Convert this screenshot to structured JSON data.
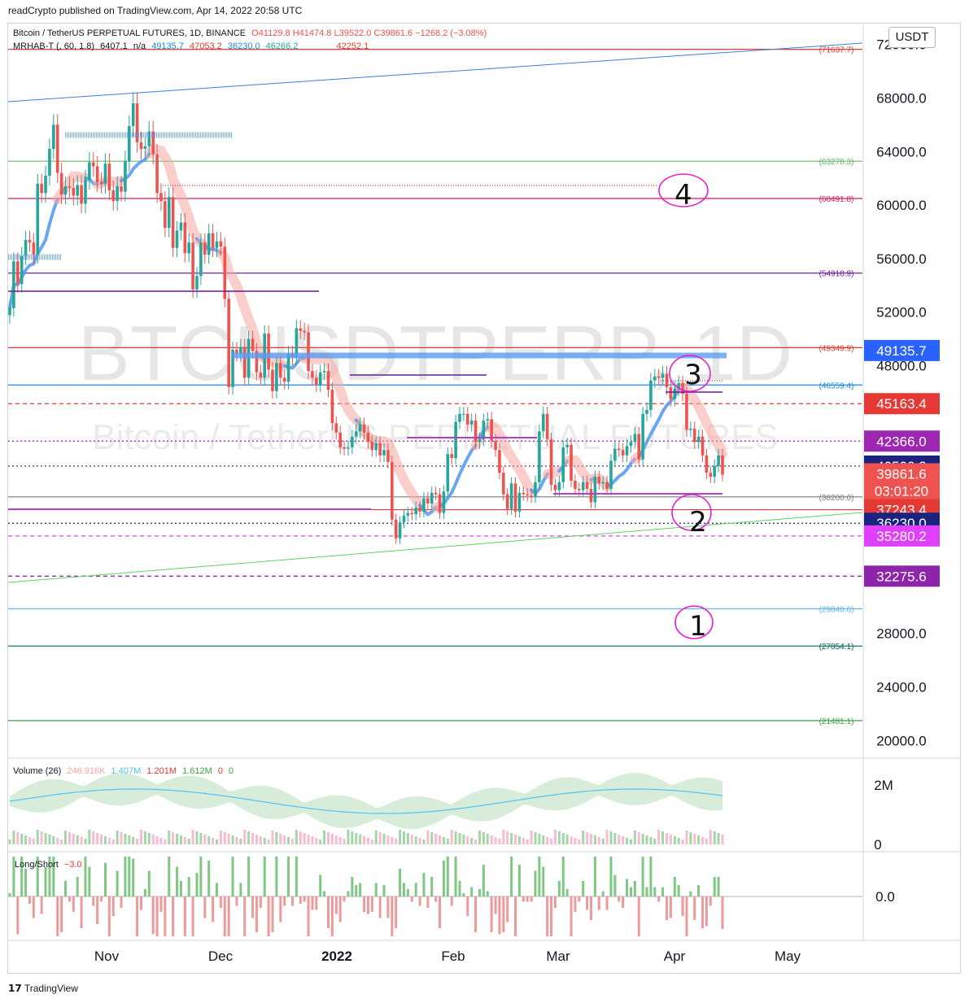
{
  "publisher": "readCrypto published on TradingView.com, Apr 14, 2022 20:58 UTC",
  "footer": "TradingView",
  "currency_button": "USDT",
  "watermark": {
    "line1": "BTCUSDTPERP, 1D",
    "line2": "Bitcoin / TetherUS PERPETUAL FUTURES"
  },
  "legend": {
    "symbol": "Bitcoin / TetherUS PERPETUAL FUTURES, 1D, BINANCE",
    "ohlc": "O41129.8 H41474.8 L39522.0 C39861.6 −1268.2 (−3.08%)",
    "indicator": "MRHAB-T (, 60, 1.8)",
    "ind_vals": [
      "6407.1",
      "n/a",
      "49135.7",
      "47053.2",
      "36230.0",
      "46266.2",
      "42252.1"
    ]
  },
  "volume_legend": {
    "name": "Volume (26)",
    "vals": [
      "246.916K",
      "1.407M",
      "1.201M",
      "1.612M",
      "0",
      "0"
    ]
  },
  "ls_legend": {
    "name": "Long/Short",
    "val": "−3.0"
  },
  "colors": {
    "up": "#26a69a",
    "down": "#ef5350",
    "blue": "#5b9cf0",
    "salmon": "#f4a6a0",
    "green_line": "#4caf50",
    "red_line": "#e53935"
  },
  "chart_data": {
    "type": "candlestick",
    "price_axis": [
      72000,
      68000,
      64000,
      60000,
      56000,
      52000,
      48000,
      28000,
      24000,
      20000
    ],
    "price_axis_labels": [
      "72000.0",
      "68000.0",
      "64000.0",
      "60000.0",
      "56000.0",
      "52000.0",
      "48000.0",
      "28000.0",
      "24000.0",
      "20000.0"
    ],
    "ylim": [
      18800,
      73500
    ],
    "time_axis": [
      "Nov",
      "Dec",
      "2022",
      "Feb",
      "Mar",
      "Apr",
      "May"
    ],
    "h_levels": [
      {
        "value": 71637.7,
        "label": "(71637.7)",
        "color": "#e53935",
        "style": "solid",
        "from": 0.0
      },
      {
        "value": 63278.3,
        "label": "(63278.3)",
        "color": "#66bb6a",
        "style": "solid",
        "from": 0.0
      },
      {
        "value": 60491.8,
        "label": "(60491.8)",
        "color": "#d81b60",
        "style": "solid",
        "from": 0.0
      },
      {
        "value": 54918.9,
        "label": "(54918.9)",
        "color": "#7b1fa2",
        "style": "solid",
        "from": 0.0
      },
      {
        "value": 49349.9,
        "label": "(49349.9)",
        "color": "#e53935",
        "style": "solid",
        "from": 0.0
      },
      {
        "value": 46559.4,
        "label": "(46559.4)",
        "color": "#1e88e5",
        "style": "solid",
        "from": 0.0
      },
      {
        "value": 38200.0,
        "label": "(38200.0)",
        "color": "#787b86",
        "style": "solid",
        "from": 0.0
      },
      {
        "value": 29840.6,
        "label": "(29840.6)",
        "color": "#64b5f6",
        "style": "solid",
        "from": 0.0
      },
      {
        "value": 27054.1,
        "label": "(27054.1)",
        "color": "#00695c",
        "style": "solid",
        "from": 0.0
      },
      {
        "value": 21481.1,
        "label": "(21481.1)",
        "color": "#43a047",
        "style": "solid",
        "from": 0.0
      },
      {
        "value": 45163.4,
        "label": "",
        "color": "#e53935",
        "style": "dashed",
        "from": 0.0
      },
      {
        "value": 42366.0,
        "label": "",
        "color": "#8e24aa",
        "style": "dotted",
        "from": 0.0
      },
      {
        "value": 40500.3,
        "label": "",
        "color": "#1a237e",
        "style": "dotted",
        "from": 0.0
      },
      {
        "value": 37243.4,
        "label": "",
        "color": "#e53935",
        "style": "solid",
        "from": 0.0
      },
      {
        "value": 36230.0,
        "label": "",
        "color": "#1a237e",
        "style": "dotted",
        "from": 0.0
      },
      {
        "value": 35280.2,
        "label": "",
        "color": "#e040fb",
        "style": "dashed",
        "from": 0.0
      },
      {
        "value": 32275.6,
        "label": "",
        "color": "#7b1fa2",
        "style": "dashed",
        "from": 0.0
      }
    ],
    "price_tags": [
      {
        "value": 49135.7,
        "label": "49135.7",
        "bg": "#2962ff"
      },
      {
        "value": 45163.4,
        "label": "45163.4",
        "bg": "#e53935"
      },
      {
        "value": 42366.0,
        "label": "42366.0",
        "bg": "#9c27b0"
      },
      {
        "value": 40500.3,
        "label": "40500.3",
        "bg": "#1a237e"
      },
      {
        "value": 39861.6,
        "label": "39861.6",
        "bg": "#ef5350",
        "sub": "03:01:20"
      },
      {
        "value": 37243.4,
        "label": "37243.4",
        "bg": "#e53935"
      },
      {
        "value": 36230.0,
        "label": "36230.0",
        "bg": "#1a237e"
      },
      {
        "value": 35280.2,
        "label": "35280.2",
        "bg": "#e040fb"
      },
      {
        "value": 32275.6,
        "label": "32275.6",
        "bg": "#8e24aa"
      }
    ],
    "annotations": [
      "1",
      "2",
      "3",
      "4"
    ],
    "volume_axis": [
      "2M",
      "0"
    ],
    "ls_axis": [
      "0.0"
    ],
    "closes": [
      52300,
      55800,
      54100,
      56200,
      57400,
      57200,
      56300,
      61600,
      60900,
      62200,
      64200,
      66000,
      62400,
      60800,
      61400,
      61300,
      60700,
      61500,
      60100,
      61900,
      63200,
      62900,
      61700,
      61600,
      63100,
      61100,
      60300,
      61400,
      61000,
      63300,
      65900,
      67600,
      64700,
      64200,
      64400,
      65500,
      63800,
      60900,
      60300,
      58300,
      60600,
      56800,
      58100,
      58700,
      56400,
      57200,
      53700,
      54700,
      57200,
      56300,
      57900,
      56800,
      57300,
      56900,
      53000,
      46400,
      49200,
      48900,
      49400,
      47100,
      50000,
      49100,
      47500,
      47100,
      50400,
      47700,
      46100,
      48200,
      47100,
      46800,
      48900,
      48600,
      50800,
      50600,
      50500,
      47600,
      47100,
      46600,
      47500,
      47600,
      46200,
      43700,
      43000,
      41900,
      41800,
      41900,
      42700,
      43100,
      43600,
      43000,
      42300,
      41700,
      42200,
      41300,
      41700,
      40800,
      36500,
      35100,
      36300,
      36800,
      37000,
      36900,
      37400,
      37100,
      38100,
      37700,
      38500,
      38400,
      37000,
      38600,
      41400,
      41100,
      43800,
      44400,
      44400,
      43600,
      43900,
      42300,
      42500,
      43900,
      44000,
      42400,
      41700,
      40000,
      38400,
      37300,
      39200,
      37100,
      38500,
      38400,
      38300,
      38200,
      39300,
      43100,
      44400,
      42500,
      39100,
      38700,
      39300,
      41900,
      42100,
      39400,
      38800,
      38700,
      39300,
      38800,
      37800,
      39700,
      39200,
      39300,
      38800,
      40900,
      41800,
      41700,
      41300,
      42000,
      42300,
      42900,
      41000,
      44400,
      44700,
      46900,
      47200,
      47100,
      47400,
      46400,
      45500,
      46300,
      46700,
      45900,
      43200,
      43300,
      42300,
      42700,
      41300,
      40000,
      39700,
      40500,
      41300,
      39860
    ]
  }
}
